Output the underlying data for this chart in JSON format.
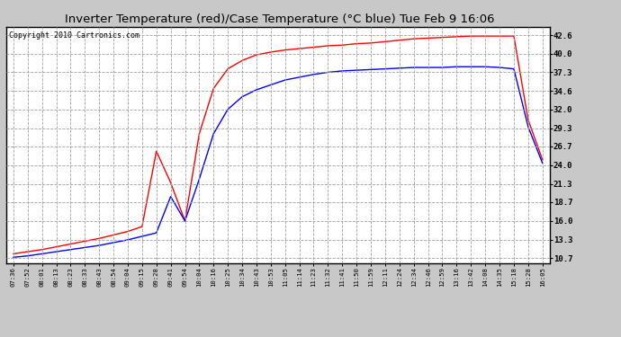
{
  "title": "Inverter Temperature (red)/Case Temperature (°C blue) Tue Feb 9 16:06",
  "copyright": "Copyright 2010 Cartronics.com",
  "yticks": [
    10.7,
    13.3,
    16.0,
    18.7,
    21.3,
    24.0,
    26.7,
    29.3,
    32.0,
    34.6,
    37.3,
    40.0,
    42.6
  ],
  "ylim": [
    10.0,
    43.8
  ],
  "bg_color": "#c8c8c8",
  "plot_bg": "#ffffff",
  "grid_color": "#a0a0a0",
  "xtick_labels": [
    "07:36",
    "07:52",
    "08:01",
    "08:13",
    "08:23",
    "08:33",
    "08:43",
    "08:54",
    "09:04",
    "09:15",
    "09:28",
    "09:41",
    "09:54",
    "10:04",
    "10:16",
    "10:25",
    "10:34",
    "10:43",
    "10:53",
    "11:05",
    "11:14",
    "11:23",
    "11:32",
    "11:41",
    "11:50",
    "11:59",
    "12:11",
    "12:24",
    "12:34",
    "12:46",
    "12:59",
    "13:16",
    "13:42",
    "14:08",
    "14:35",
    "15:18",
    "15:28",
    "16:05"
  ],
  "red_data": [
    11.3,
    11.6,
    11.9,
    12.3,
    12.7,
    13.1,
    13.5,
    14.0,
    14.5,
    15.2,
    26.0,
    21.5,
    16.0,
    28.5,
    35.0,
    37.8,
    39.0,
    39.8,
    40.2,
    40.5,
    40.7,
    40.9,
    41.1,
    41.2,
    41.4,
    41.5,
    41.7,
    41.9,
    42.1,
    42.2,
    42.3,
    42.4,
    42.5,
    42.5,
    42.5,
    42.5,
    30.5,
    24.8
  ],
  "blue_data": [
    10.8,
    11.0,
    11.3,
    11.6,
    11.9,
    12.2,
    12.5,
    12.9,
    13.3,
    13.8,
    14.3,
    19.5,
    16.0,
    22.0,
    28.5,
    32.0,
    33.8,
    34.8,
    35.5,
    36.2,
    36.6,
    37.0,
    37.3,
    37.5,
    37.6,
    37.7,
    37.8,
    37.9,
    38.0,
    38.0,
    38.0,
    38.1,
    38.1,
    38.1,
    38.0,
    37.8,
    29.5,
    24.3
  ],
  "red_color": "#ff0000",
  "blue_color": "#0000ff",
  "line_width": 1.0
}
